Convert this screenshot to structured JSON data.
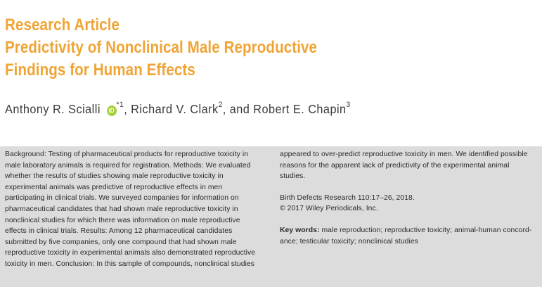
{
  "header": {
    "article_type": "Research Article",
    "title_line1": "Predictivity of Nonclinical Male Reproductive",
    "title_line2": "Findings for Human Effects"
  },
  "authors": {
    "author1": "Anthony R. Scialli",
    "orcid_badge": "iD",
    "author1_sup": "*1",
    "sep1": ", Richard V. Clark",
    "author2_sup": "2",
    "sep2": ", and Robert E. Chapin",
    "author3_sup": "3"
  },
  "abstract": {
    "left_lines": [
      "Background: Testing of pharmaceutical products for reproductive toxicity in",
      "male laboratory animals is required for registration. Methods: We evaluated",
      "whether the results of studies showing male reproductive toxicity in",
      "experimental animals was predictive of reproductive effects in men",
      "participating in clinical trials. We surveyed companies for information on",
      "pharmaceutical candidates that had shown male reproductive toxicity in",
      "nonclinical studies for which there was information on male reproductive",
      "effects in clinical trials. Results: Among 12 pharmaceutical candidates",
      "submitted by five companies, only one compound that had shown male",
      "reproductive toxicity in experimental animals also demonstrated reproductive",
      "toxicity in men. Conclusion: In this sample of compounds, nonclinical studies"
    ],
    "right_lines": [
      "appeared to over-predict reproductive toxicity in men. We identified possible",
      "reasons for the apparent lack of predictivity of the experimental animal",
      "studies."
    ],
    "citation": "Birth Defects Research 110:17–26, 2018.",
    "copyright": "© 2017 Wiley Periodicals, Inc.",
    "keywords_label": "Key words:",
    "keywords_line1": " male reproduction; reproductive toxicity; animal-human concord-",
    "keywords_line2": "ance; testicular toxicity; nonclinical studies"
  }
}
